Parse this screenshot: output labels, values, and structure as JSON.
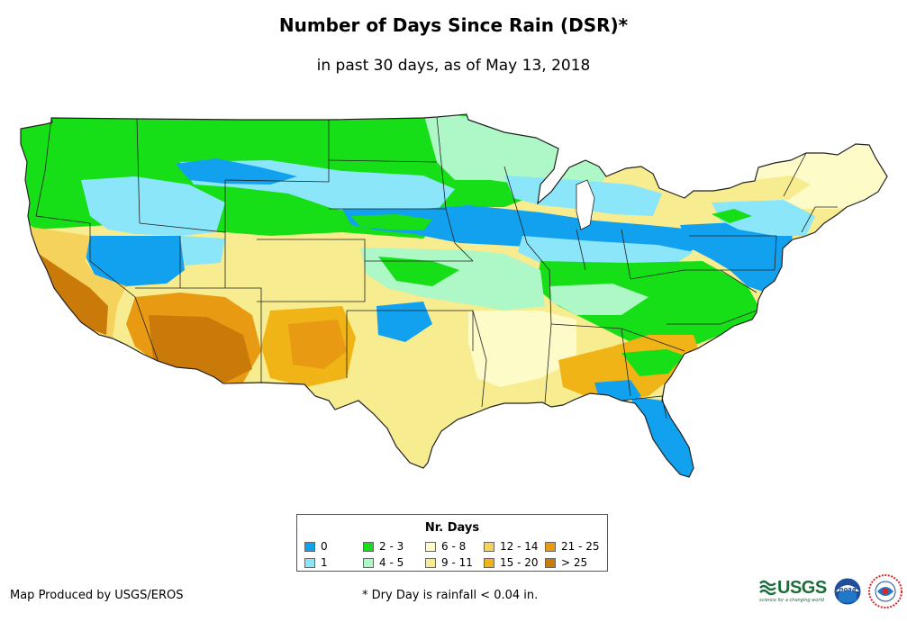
{
  "title": "Number of Days Since Rain (DSR)*",
  "subtitle": "in past 30 days, as of May 13, 2018",
  "legend": {
    "title": "Nr. Days",
    "items": [
      {
        "label": "0",
        "color": "#12a1ee"
      },
      {
        "label": "1",
        "color": "#8ae6f8"
      },
      {
        "label": "2 - 3",
        "color": "#17df17"
      },
      {
        "label": "4 - 5",
        "color": "#aef7c6"
      },
      {
        "label": "6 - 8",
        "color": "#fdfbc8"
      },
      {
        "label": "9 - 11",
        "color": "#f7ec8f"
      },
      {
        "label": "12 - 14",
        "color": "#f5d25c"
      },
      {
        "label": "15 - 20",
        "color": "#f1b416"
      },
      {
        "label": "21 - 25",
        "color": "#e89b12"
      },
      {
        "label": "> 25",
        "color": "#c97a08"
      }
    ]
  },
  "footer": {
    "produced_by": "Map Produced by USGS/EROS",
    "note": "* Dry Day is rainfall < 0.04 in."
  },
  "logos": {
    "usgs_text": "USGS",
    "usgs_tagline": "science for a changing world",
    "noaa_text": "noaa"
  }
}
